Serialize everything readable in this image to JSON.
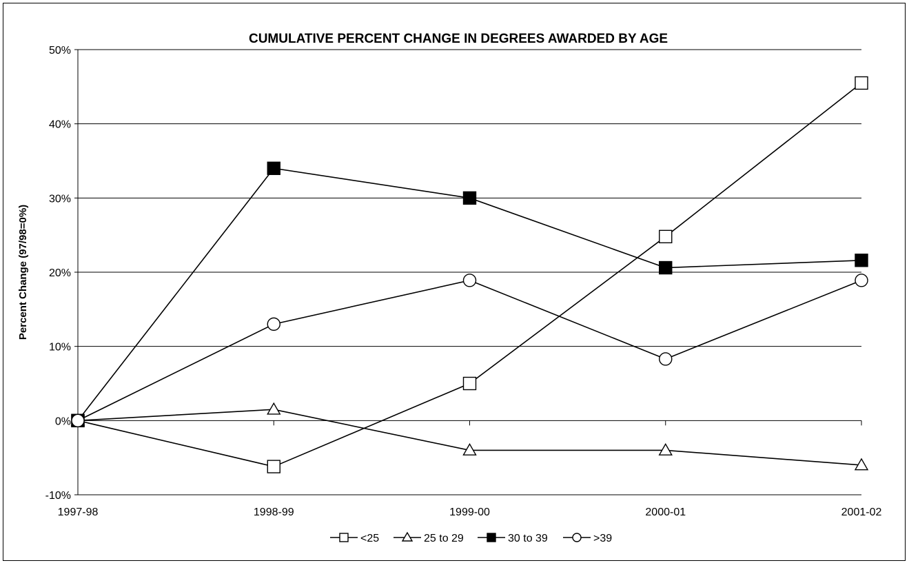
{
  "chart_data": {
    "type": "line",
    "title": "CUMULATIVE PERCENT CHANGE IN DEGREES AWARDED BY AGE",
    "ylabel": "Percent Change (97/98=0%)",
    "xlabel": "",
    "categories": [
      "1997-98",
      "1998-99",
      "1999-00",
      "2000-01",
      "2001-02"
    ],
    "ylim": [
      -10,
      50
    ],
    "yticks": [
      -10,
      0,
      10,
      20,
      30,
      40,
      50
    ],
    "ytick_labels": [
      "-10%",
      "0%",
      "10%",
      "20%",
      "30%",
      "40%",
      "50%"
    ],
    "grid": "horizontal",
    "legend_position": "bottom",
    "series": [
      {
        "name": "<25",
        "marker": "open-square",
        "values": [
          0,
          -6.2,
          5.0,
          24.8,
          45.5
        ]
      },
      {
        "name": "25 to 29",
        "marker": "open-triangle",
        "values": [
          0,
          1.5,
          -4.0,
          -4.0,
          -6.0
        ]
      },
      {
        "name": "30 to 39",
        "marker": "filled-square",
        "values": [
          0,
          34.0,
          30.0,
          20.6,
          21.6
        ]
      },
      {
        "name": ">39",
        "marker": "open-circle",
        "values": [
          0,
          13.0,
          18.9,
          8.3,
          18.9
        ]
      }
    ]
  }
}
